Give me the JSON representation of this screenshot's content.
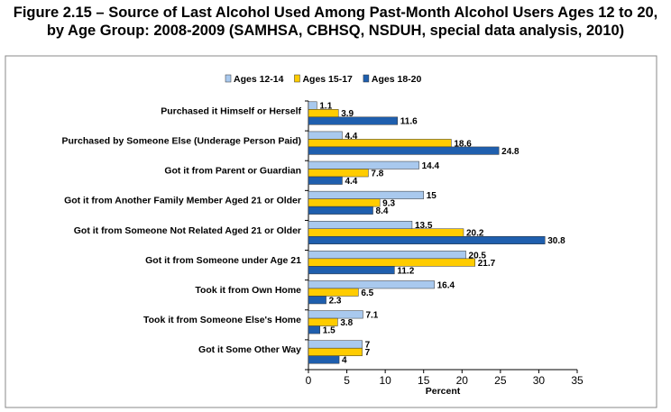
{
  "chart_data": {
    "type": "hbar",
    "title": "Figure 2.15 – Source of Last Alcohol Used Among Past-Month Alcohol Users Ages 12 to 20, by Age Group: 2008-2009 (SAMHSA, CBHSQ, NSDUH, special data analysis, 2010)",
    "xlabel": "Percent",
    "categories": [
      "Purchased it Himself or Herself",
      "Purchased by Someone Else (Underage Person Paid)",
      "Got it from Parent or Guardian",
      "Got it from Another Family Member Aged 21 or Older",
      "Got it from Someone Not Related Aged 21 or Older",
      "Got it from Someone under Age 21",
      "Took it from Own Home",
      "Took it from Someone Else's Home",
      "Got it Some Other Way"
    ],
    "series": [
      {
        "name": "Ages 12-14",
        "color": "#a9c9ee",
        "values": [
          1.1,
          4.4,
          14.4,
          15,
          13.5,
          20.5,
          16.4,
          7.1,
          7
        ]
      },
      {
        "name": "Ages 15-17",
        "color": "#ffcc00",
        "values": [
          3.9,
          18.6,
          7.8,
          9.3,
          20.2,
          21.7,
          6.5,
          3.8,
          7
        ]
      },
      {
        "name": "Ages 18-20",
        "color": "#1f5fae",
        "values": [
          11.6,
          24.8,
          4.4,
          8.4,
          30.8,
          11.2,
          2.3,
          1.5,
          4
        ]
      }
    ],
    "xlim": [
      0,
      35
    ],
    "xticks": [
      0,
      5,
      10,
      15,
      20,
      25,
      30,
      35
    ],
    "grid": false,
    "legend": "top"
  }
}
